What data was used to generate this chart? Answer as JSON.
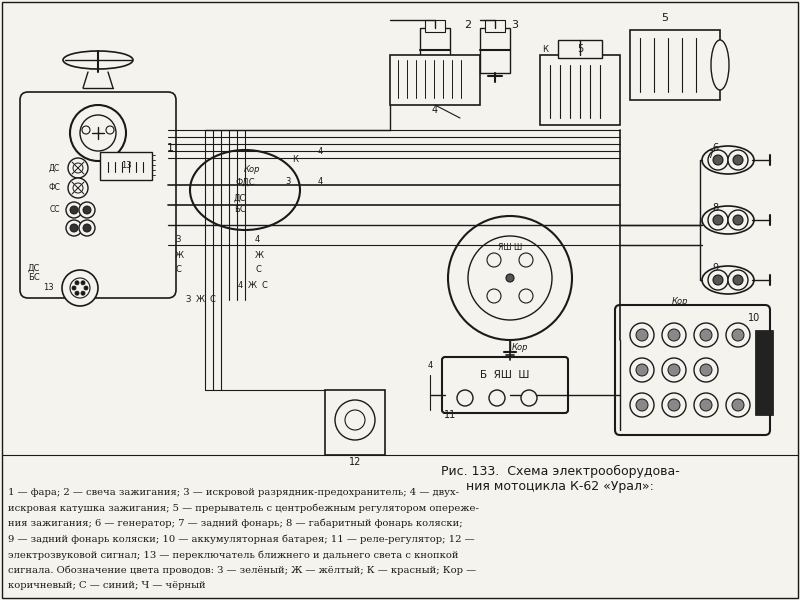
{
  "bg_color": "#f5f3ee",
  "line_color": "#1a1a1a",
  "fig_width": 8.0,
  "fig_height": 6.0,
  "title": "Рис. 133.  Схема электрооборудова-\nния мотоцикла К-62 «Урал»:",
  "caption": [
    "1 — фара; 2 — свеча зажигания; 3 — искровой разрядник-предохранитель; 4 — двух-",
    "искровая катушка зажигания; 5 — прерыватель с центробежным регулятором опереже-",
    "ния зажигания; 6 — генератор; 7 — задний фонарь; 8 — габаритный фонарь коляски;",
    "9 — задний фонарь коляски; 10 — аккумуляторная батарея; 11 — реле-регулятор; 12 —",
    "электрозвуковой сигнал; 13 — переключатель ближнего и дальнего света с кнопкой",
    "сигнала. Обозначение цвета проводов: З — зелёный; Ж — жёлтый; К — красный; Кор —",
    "коричневый; С — синий; Ч — чёрный"
  ]
}
